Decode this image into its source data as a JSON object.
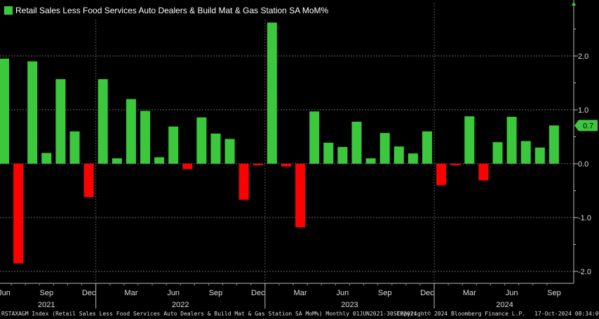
{
  "chart_data": {
    "type": "bar",
    "title": "",
    "xlabel": "",
    "ylabel": "",
    "ylim": [
      -2.2,
      3.0
    ],
    "grid": true,
    "legend": "top-left",
    "series": [
      {
        "name": "Retail Sales Less Food Services Auto Dealers & Build Mat & Gas Station SA MoM%",
        "categories": [
          "Jun 2021",
          "Jul 2021",
          "Aug 2021",
          "Sep 2021",
          "Oct 2021",
          "Nov 2021",
          "Dec 2021",
          "Jan 2022",
          "Feb 2022",
          "Mar 2022",
          "Apr 2022",
          "May 2022",
          "Jun 2022",
          "Jul 2022",
          "Aug 2022",
          "Sep 2022",
          "Oct 2022",
          "Nov 2022",
          "Dec 2022",
          "Jan 2023",
          "Feb 2023",
          "Mar 2023",
          "Apr 2023",
          "May 2023",
          "Jun 2023",
          "Jul 2023",
          "Aug 2023",
          "Sep 2023",
          "Oct 2023",
          "Nov 2023",
          "Dec 2023",
          "Jan 2024",
          "Feb 2024",
          "Mar 2024",
          "Apr 2024",
          "May 2024",
          "Jun 2024",
          "Jul 2024",
          "Aug 2024",
          "Sep 2024"
        ],
        "values": [
          1.95,
          -1.85,
          1.9,
          0.2,
          1.57,
          0.6,
          -0.62,
          1.57,
          0.1,
          1.2,
          0.98,
          0.12,
          0.69,
          -0.1,
          0.86,
          0.56,
          0.46,
          -0.67,
          -0.03,
          2.62,
          -0.05,
          -1.18,
          0.97,
          0.39,
          0.31,
          0.78,
          0.1,
          0.57,
          0.32,
          0.19,
          0.6,
          -0.4,
          -0.03,
          0.88,
          -0.31,
          0.4,
          0.87,
          0.42,
          0.3,
          0.71
        ],
        "positive_color": "#3cc83c",
        "negative_color": "#ff0000"
      }
    ],
    "y_ticks": [
      {
        "value": 2.0,
        "label": "2.0"
      },
      {
        "value": 1.0,
        "label": "1.0"
      },
      {
        "value": 0.0,
        "label": "0.0"
      },
      {
        "value": -1.0,
        "label": "-1.0"
      },
      {
        "value": -2.0,
        "label": "-2.0"
      }
    ],
    "last_value_label": "0.7",
    "x_month_labels": [
      {
        "index": 0,
        "label": "Jun"
      },
      {
        "index": 3,
        "label": "Sep"
      },
      {
        "index": 6,
        "label": "Dec"
      },
      {
        "index": 9,
        "label": "Mar"
      },
      {
        "index": 12,
        "label": "Jun"
      },
      {
        "index": 15,
        "label": "Sep"
      },
      {
        "index": 18,
        "label": "Dec"
      },
      {
        "index": 21,
        "label": "Mar"
      },
      {
        "index": 24,
        "label": "Jun"
      },
      {
        "index": 27,
        "label": "Sep"
      },
      {
        "index": 30,
        "label": "Dec"
      },
      {
        "index": 33,
        "label": "Mar"
      },
      {
        "index": 36,
        "label": "Jun"
      },
      {
        "index": 39,
        "label": "Sep"
      }
    ],
    "x_year_labels": [
      {
        "index": 3,
        "label": "2021"
      },
      {
        "index": 12.5,
        "label": "2022"
      },
      {
        "index": 24.5,
        "label": "2023"
      },
      {
        "index": 35.5,
        "label": "2024"
      }
    ],
    "year_boundaries": [
      7,
      19,
      31
    ]
  },
  "legend": {
    "label": "Retail Sales Less Food Services Auto Dealers & Build Mat & Gas Station SA MoM%",
    "color": "#3cc83c"
  },
  "footer": {
    "index_text": "RSTAXAGM Index (Retail Sales Less Food Services Auto Dealers & Build Mat & Gas Station SA MoM%)  Monthly 01JUN2021-30SEP2024",
    "copyright": "Copyright© 2024 Bloomberg Finance L.P.",
    "timestamp": "17-Oct-2024 08:34:08"
  }
}
